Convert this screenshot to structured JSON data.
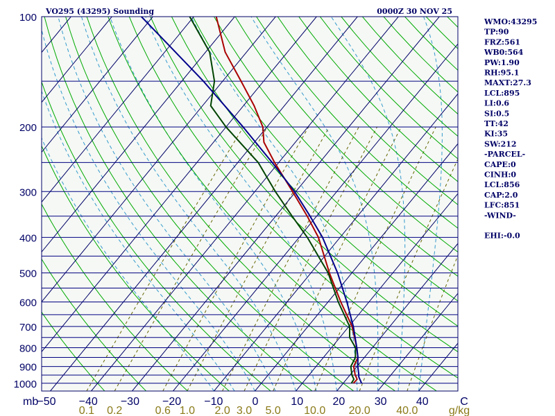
{
  "chart_data": {
    "type": "line",
    "title": "VO295 (43295) Sounding",
    "valid_time": "0000Z 30 NOV 25",
    "y_unit_label": "mb",
    "mixing_ratio_unit": "g/kg",
    "pressure_ticks": [
      "100",
      "200",
      "300",
      "400",
      "500",
      "600",
      "700",
      "800",
      "900",
      "1000"
    ],
    "temperature_ticks": [
      "-50",
      "-40",
      "-30",
      "-20",
      "-10",
      "0",
      "10",
      "20",
      "30",
      "40",
      "C"
    ],
    "mixing_ratio_ticks": [
      "0.1",
      "0.2",
      "0.6",
      "1.0",
      "2.0",
      "3.0",
      "5.0",
      "10.0",
      "20.0",
      "40.0"
    ],
    "ylim": [
      1000,
      100
    ],
    "series": [
      {
        "name": "Temperature",
        "color": "#aa0000",
        "points": [
          [
            1000,
            22.5
          ],
          [
            975,
            22.6
          ],
          [
            950,
            21.3
          ],
          [
            900,
            19.2
          ],
          [
            850,
            18.4
          ],
          [
            800,
            16.2
          ],
          [
            700,
            10.8
          ],
          [
            600,
            3.1
          ],
          [
            500,
            -5.5
          ],
          [
            400,
            -15.3
          ],
          [
            350,
            -22.3
          ],
          [
            300,
            -30.8
          ],
          [
            250,
            -41.0
          ],
          [
            220,
            -47.7
          ],
          [
            200,
            -51.0
          ],
          [
            175,
            -57.4
          ],
          [
            150,
            -65.5
          ],
          [
            125,
            -75.2
          ],
          [
            100,
            -84.5
          ]
        ]
      },
      {
        "name": "Dewpoint",
        "color": "#004400",
        "points": [
          [
            1000,
            22.0
          ],
          [
            975,
            21.8
          ],
          [
            950,
            20.5
          ],
          [
            900,
            18.5
          ],
          [
            850,
            17.8
          ],
          [
            800,
            15.9
          ],
          [
            750,
            12.4
          ],
          [
            700,
            10.2
          ],
          [
            600,
            2.5
          ],
          [
            500,
            -5.8
          ],
          [
            400,
            -18.0
          ],
          [
            350,
            -26.0
          ],
          [
            300,
            -35.0
          ],
          [
            250,
            -45.0
          ],
          [
            200,
            -60.0
          ],
          [
            175,
            -68.0
          ],
          [
            150,
            -72.0
          ],
          [
            125,
            -79.0
          ],
          [
            100,
            -91.0
          ]
        ]
      },
      {
        "name": "Parcel",
        "color": "#00008b",
        "points": [
          [
            1000,
            24.5
          ],
          [
            960,
            22.5
          ],
          [
            950,
            22.2
          ],
          [
            900,
            20.2
          ],
          [
            850,
            18.4
          ],
          [
            800,
            16.2
          ],
          [
            700,
            11.1
          ],
          [
            600,
            4.6
          ],
          [
            500,
            -3.5
          ],
          [
            400,
            -14.3
          ],
          [
            350,
            -21.6
          ],
          [
            300,
            -30.3
          ],
          [
            250,
            -41.6
          ],
          [
            200,
            -55.8
          ],
          [
            150,
            -74.7
          ],
          [
            100,
            -102.8
          ]
        ]
      }
    ]
  },
  "indices": [
    "WMO:43295",
    "TP:90",
    "FRZ:561",
    "WB0:564",
    "PW:1.90",
    "RH:95.1",
    "MAXT:27.3",
    "LCL:895",
    "LI:0.6",
    "SI:0.5",
    "TT:42",
    "KI:35",
    "SW:212",
    "-PARCEL-",
    "CAPE:0",
    "CINH:0",
    "LCL:856",
    "CAP:2.0",
    "LFC:851",
    "-WIND-",
    "",
    "EHI:-0.0"
  ],
  "colors": {
    "background": "#ffffff",
    "plot_bg": "#f5f8f5",
    "frame": "#000066",
    "isobar": "#000080",
    "isotherm": "#000066",
    "dry_adiabat": "#00aa00",
    "moist_adiabat": "#3399cc",
    "mixing_ratio": "#666600",
    "text": "#000066"
  }
}
